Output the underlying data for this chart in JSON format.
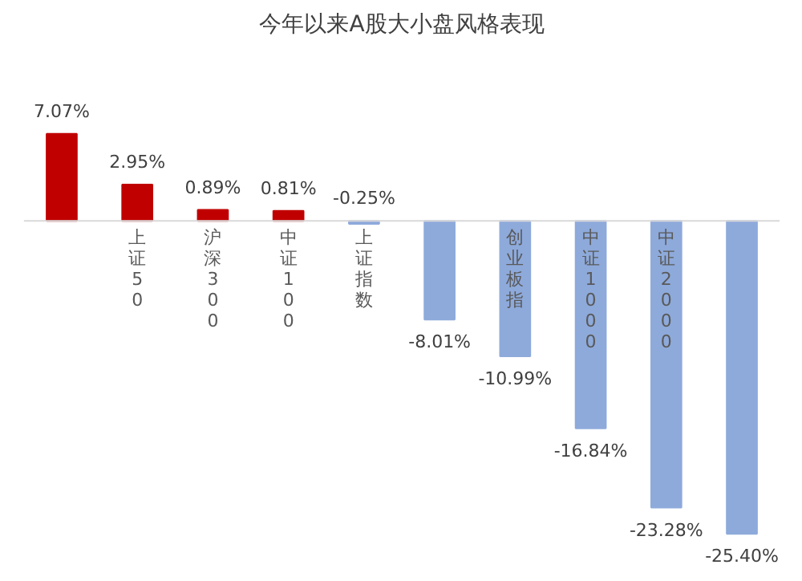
{
  "chart_data": {
    "type": "bar",
    "title": "今年以来A股大小盘风格表现",
    "categories": [
      null,
      "上证50",
      "沪深300",
      "中证100",
      "上证指数",
      null,
      "创业板指",
      "中证1000",
      "中证2000",
      null
    ],
    "values": [
      7.07,
      2.95,
      0.89,
      0.81,
      -0.25,
      -8.01,
      -10.99,
      -16.84,
      -23.28,
      -25.4
    ],
    "colors": [
      "#c00000",
      "#c00000",
      "#c00000",
      "#c00000",
      "#8eaadb",
      "#8eaadb",
      "#8eaadb",
      "#8eaadb",
      "#8eaadb",
      "#8eaadb"
    ],
    "value_labels": [
      "7.07%",
      "2.95%",
      "0.89%",
      "0.81%",
      "-0.25%",
      "-8.01%",
      "-10.99%",
      "-16.84%",
      "-23.28%",
      "-25.40%"
    ],
    "grid": false
  }
}
